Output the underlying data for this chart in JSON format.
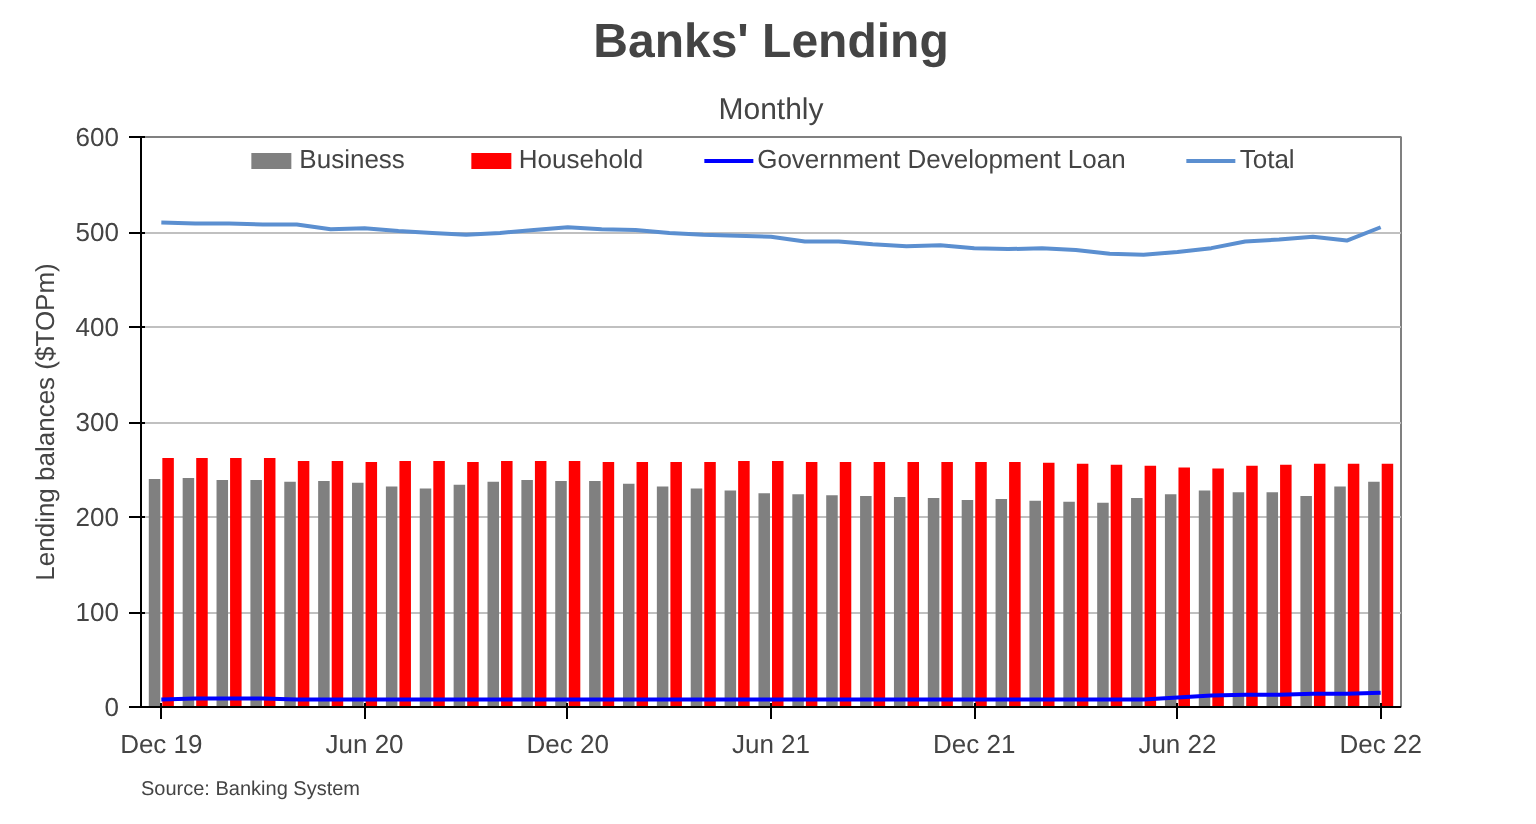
{
  "chart_data": {
    "type": "bar",
    "title": "Banks' Lending",
    "subtitle": "Monthly",
    "ylabel": "Lending balances ($TOPm)",
    "categories": [
      "Dec 19",
      null,
      null,
      null,
      null,
      null,
      "Jun 20",
      null,
      null,
      null,
      null,
      null,
      "Dec 20",
      null,
      null,
      null,
      null,
      null,
      "Jun 21",
      null,
      null,
      null,
      null,
      null,
      "Dec 21",
      null,
      null,
      null,
      null,
      null,
      "Jun 22",
      null,
      null,
      null,
      null,
      null,
      "Dec 22"
    ],
    "series": [
      {
        "name": "Business",
        "color": "#808080",
        "values": [
          240,
          241,
          239,
          239,
          237,
          238,
          236,
          232,
          230,
          234,
          237,
          239,
          238,
          238,
          235,
          232,
          230,
          228,
          225,
          224,
          223,
          222,
          221,
          220,
          218,
          219,
          217,
          216,
          215,
          220,
          224,
          228,
          226,
          226,
          222,
          232,
          237
        ]
      },
      {
        "name": "Household",
        "color": "#ff0000",
        "values": [
          262,
          262,
          262,
          262,
          259,
          259,
          258,
          259,
          259,
          258,
          259,
          259,
          259,
          258,
          258,
          258,
          258,
          259,
          259,
          258,
          258,
          258,
          258,
          258,
          258,
          258,
          257,
          256,
          255,
          254,
          252,
          251,
          254,
          255,
          256,
          256,
          256
        ]
      },
      {
        "name": "Government Development Loan",
        "color": "#0000ff",
        "type": "line",
        "values": [
          8,
          9,
          9,
          9,
          8,
          8,
          8,
          8,
          8,
          8,
          8,
          8,
          8,
          8,
          8,
          8,
          8,
          8,
          8,
          8,
          8,
          8,
          8,
          8,
          8,
          8,
          8,
          8,
          8,
          8,
          10,
          12,
          13,
          13,
          14,
          14,
          15
        ]
      },
      {
        "name": "Total",
        "color": "#5b8fd0",
        "type": "line",
        "values": [
          510,
          509,
          509,
          508,
          508,
          503,
          504,
          501,
          499,
          497,
          499,
          502,
          505,
          503,
          502,
          499,
          497,
          496,
          495,
          490,
          490,
          487,
          485,
          486,
          483,
          482,
          483,
          481,
          477,
          476,
          479,
          483,
          490,
          492,
          495,
          491,
          505
        ]
      }
    ],
    "ylim": [
      0,
      600
    ],
    "yticks": [
      0,
      100,
      200,
      300,
      400,
      500,
      600
    ],
    "grid": "y",
    "legend": "top",
    "annotations": [
      "Source: Banking System"
    ]
  }
}
